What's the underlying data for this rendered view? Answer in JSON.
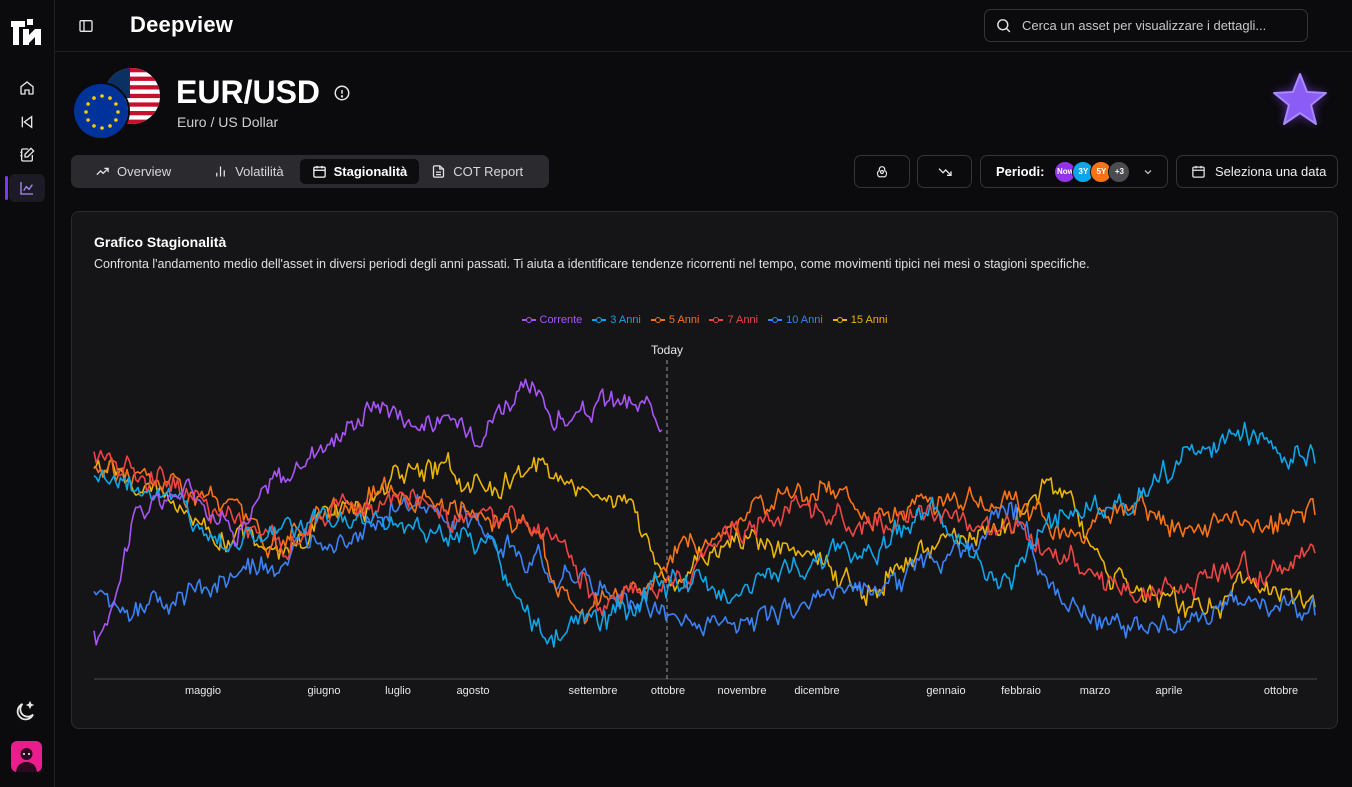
{
  "app": {
    "title": "Deepview"
  },
  "search": {
    "placeholder": "Cerca un asset per visualizzare i dettagli..."
  },
  "sidebar": {
    "items": [
      {
        "name": "home-icon",
        "active": false
      },
      {
        "name": "skip-back-icon",
        "active": false
      },
      {
        "name": "notebook-edit-icon",
        "active": false
      },
      {
        "name": "chart-area-icon",
        "active": true
      }
    ]
  },
  "asset": {
    "symbol": "EUR/USD",
    "name": "Euro / US Dollar"
  },
  "tabs": [
    {
      "label": "Overview",
      "icon": "trending-up-icon",
      "active": false
    },
    {
      "label": "Volatilità",
      "icon": "bar-chart-icon",
      "active": false
    },
    {
      "label": "Stagionalità",
      "icon": "calendar-icon",
      "active": true
    },
    {
      "label": "COT Report",
      "icon": "file-text-icon",
      "active": false
    }
  ],
  "toolbar": {
    "periodi_label": "Periodi:",
    "period_chips": [
      {
        "label": "Now",
        "color": "#9333ea"
      },
      {
        "label": "3Y",
        "color": "#0ea5e9"
      },
      {
        "label": "5Y",
        "color": "#f97316"
      },
      {
        "label": "+3",
        "color": "#4b4b52"
      }
    ],
    "date_button": "Seleziona una data"
  },
  "card": {
    "title": "Grafico Stagionalità",
    "description": "Confronta l'andamento medio dell'asset in diversi periodi degli anni passati. Ti aiuta a identificare tendenze ricorrenti nel tempo, come movimenti tipici nei mesi o stagioni specifiche."
  },
  "chart_data": {
    "type": "line",
    "today_label": "Today",
    "x_labels": [
      "maggio",
      "giugno",
      "luglio",
      "agosto",
      "settembre",
      "ottobre",
      "novembre",
      "dicembre",
      "gennaio",
      "febbraio",
      "marzo",
      "aprile",
      "ottobre"
    ],
    "series": [
      {
        "name": "Corrente",
        "color": "#a855f7",
        "values": [
          0.1,
          0.55,
          0.62,
          0.5,
          0.66,
          0.8,
          0.92,
          0.85,
          0.84,
          0.95,
          0.86,
          0.92,
          0.87
        ]
      },
      {
        "name": "3 Anni",
        "color": "#0ea5e9",
        "values": [
          0.68,
          0.62,
          0.45,
          0.48,
          0.52,
          0.5,
          0.44,
          0.12,
          0.18,
          0.3,
          0.28,
          0.36,
          0.42,
          0.55,
          0.3,
          0.52,
          0.58,
          0.72,
          0.8,
          0.72
        ]
      },
      {
        "name": "5 Anni",
        "color": "#f97316",
        "values": [
          0.7,
          0.66,
          0.58,
          0.42,
          0.56,
          0.63,
          0.54,
          0.5,
          0.22,
          0.3,
          0.45,
          0.58,
          0.62,
          0.54,
          0.6,
          0.56,
          0.48,
          0.54,
          0.48,
          0.5,
          0.52
        ]
      },
      {
        "name": "7 Anni",
        "color": "#ef4444",
        "values": [
          0.74,
          0.68,
          0.54,
          0.44,
          0.56,
          0.56,
          0.52,
          0.48,
          0.22,
          0.32,
          0.5,
          0.56,
          0.48,
          0.54,
          0.5,
          0.38,
          0.28,
          0.3,
          0.34,
          0.38
        ]
      },
      {
        "name": "10 Anni",
        "color": "#3b82f6",
        "values": [
          0.25,
          0.22,
          0.3,
          0.36,
          0.48,
          0.56,
          0.5,
          0.4,
          0.3,
          0.22,
          0.16,
          0.18,
          0.28,
          0.3,
          0.4,
          0.54,
          0.22,
          0.14,
          0.18,
          0.22,
          0.2
        ]
      },
      {
        "name": "15 Anni",
        "color": "#eab308",
        "values": [
          0.72,
          0.62,
          0.46,
          0.44,
          0.56,
          0.7,
          0.64,
          0.68,
          0.62,
          0.32,
          0.46,
          0.4,
          0.3,
          0.42,
          0.48,
          0.62,
          0.32,
          0.22,
          0.28,
          0.2
        ]
      }
    ]
  }
}
